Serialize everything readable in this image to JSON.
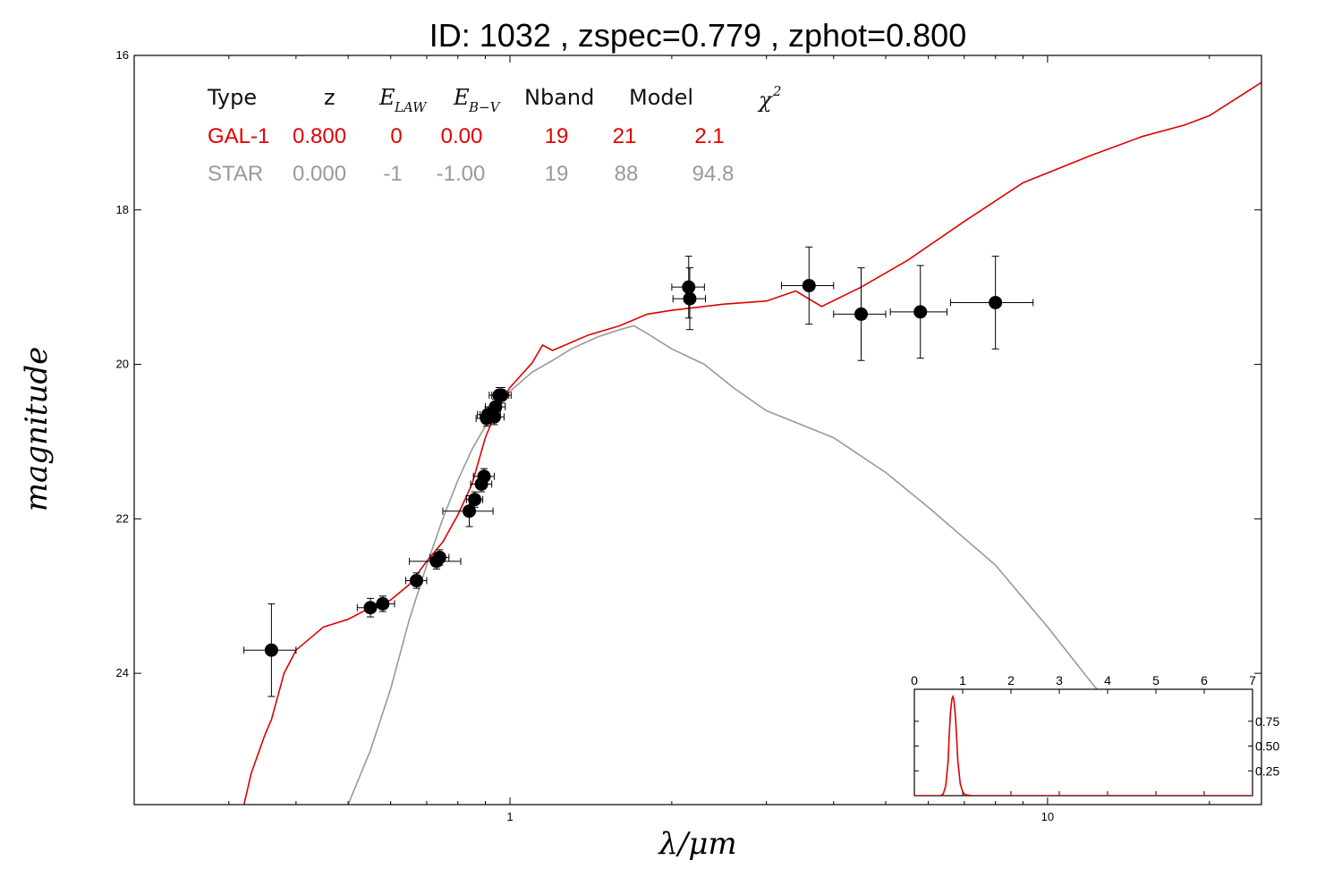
{
  "title": "ID:  1032  , zspec=0.779 , zphot=0.800",
  "colors": {
    "galaxy": "#e00000",
    "star": "#999999",
    "points": "#000000"
  },
  "legend": {
    "headers": [
      "Type",
      "z",
      "E",
      "E",
      "Nband",
      "Model",
      "χ"
    ],
    "header_subscripts": {
      "e_law": "LAW",
      "e_bv": "B−V",
      "chi2": "2"
    },
    "rows": [
      {
        "type": "GAL-1",
        "z": "0.800",
        "e_law": "0",
        "e_bv": "0.00",
        "nband": "19",
        "model": "21",
        "chi2": "2.1",
        "color": "#e00000"
      },
      {
        "type": "STAR",
        "z": "0.000",
        "e_law": "-1",
        "e_bv": "-1.00",
        "nband": "19",
        "model": "88",
        "chi2": "94.8",
        "color": "#999999"
      }
    ]
  },
  "chart_data": [
    {
      "type": "scatter",
      "x_scale": "log",
      "y_inverted": true,
      "xlabel": "λ/μm",
      "ylabel": "magnitude",
      "xlim": [
        0.2,
        25
      ],
      "ylim": [
        25.7,
        16
      ],
      "x_ticks": [
        1,
        10
      ],
      "y_ticks": [
        16,
        18,
        20,
        22,
        24
      ],
      "grid": false,
      "photometry": [
        {
          "x": 0.36,
          "y": 23.7,
          "xerr": 0.04,
          "yerr": 0.6
        },
        {
          "x": 0.55,
          "y": 23.15,
          "xerr": 0.03,
          "yerr": 0.12
        },
        {
          "x": 0.58,
          "y": 23.1,
          "xerr": 0.03,
          "yerr": 0.1
        },
        {
          "x": 0.67,
          "y": 22.8,
          "xerr": 0.03,
          "yerr": 0.1
        },
        {
          "x": 0.73,
          "y": 22.55,
          "xerr": 0.08,
          "yerr": 0.1
        },
        {
          "x": 0.74,
          "y": 22.5,
          "xerr": 0.03,
          "yerr": 0.1
        },
        {
          "x": 0.84,
          "y": 21.9,
          "xerr": 0.09,
          "yerr": 0.2
        },
        {
          "x": 0.86,
          "y": 21.75,
          "xerr": 0.03,
          "yerr": 0.1
        },
        {
          "x": 0.885,
          "y": 21.55,
          "xerr": 0.04,
          "yerr": 0.1
        },
        {
          "x": 0.895,
          "y": 21.45,
          "xerr": 0.04,
          "yerr": 0.1
        },
        {
          "x": 0.905,
          "y": 20.7,
          "xerr": 0.04,
          "yerr": 0.1
        },
        {
          "x": 0.91,
          "y": 20.65,
          "xerr": 0.04,
          "yerr": 0.1
        },
        {
          "x": 0.92,
          "y": 20.65,
          "xerr": 0.04,
          "yerr": 0.1
        },
        {
          "x": 0.935,
          "y": 20.68,
          "xerr": 0.04,
          "yerr": 0.1
        },
        {
          "x": 0.94,
          "y": 20.55,
          "xerr": 0.04,
          "yerr": 0.1
        },
        {
          "x": 0.955,
          "y": 20.4,
          "xerr": 0.04,
          "yerr": 0.1
        },
        {
          "x": 0.965,
          "y": 20.4,
          "xerr": 0.04,
          "yerr": 0.1
        },
        {
          "x": 2.15,
          "y": 19.0,
          "xerr": 0.15,
          "yerr": 0.4
        },
        {
          "x": 2.16,
          "y": 19.15,
          "xerr": 0.15,
          "yerr": 0.4
        },
        {
          "x": 3.6,
          "y": 18.98,
          "xerr": 0.4,
          "yerr": 0.5
        },
        {
          "x": 4.5,
          "y": 19.35,
          "xerr": 0.5,
          "yerr": 0.6
        },
        {
          "x": 5.8,
          "y": 19.32,
          "xerr": 0.7,
          "yerr": 0.6
        },
        {
          "x": 8.0,
          "y": 19.2,
          "xerr": 1.4,
          "yerr": 0.6
        }
      ],
      "series": [
        {
          "name": "GAL-1",
          "x": [
            0.32,
            0.33,
            0.35,
            0.36,
            0.38,
            0.4,
            0.45,
            0.5,
            0.55,
            0.6,
            0.65,
            0.7,
            0.75,
            0.8,
            0.85,
            0.9,
            0.95,
            1.0,
            1.1,
            1.15,
            1.2,
            1.4,
            1.6,
            1.8,
            2.0,
            2.5,
            3.0,
            3.4,
            3.8,
            4.5,
            5.5,
            7,
            9,
            12,
            15,
            18,
            20,
            25
          ],
          "y": [
            25.7,
            25.3,
            24.8,
            24.6,
            24.0,
            23.7,
            23.4,
            23.3,
            23.15,
            23.05,
            22.85,
            22.55,
            22.3,
            21.95,
            21.55,
            20.95,
            20.55,
            20.3,
            19.98,
            19.75,
            19.82,
            19.62,
            19.5,
            19.35,
            19.3,
            19.22,
            19.18,
            19.05,
            19.25,
            19.0,
            18.65,
            18.15,
            17.65,
            17.3,
            17.05,
            16.9,
            16.78,
            16.35
          ]
        },
        {
          "name": "STAR",
          "x": [
            0.5,
            0.55,
            0.6,
            0.65,
            0.7,
            0.75,
            0.8,
            0.85,
            0.9,
            0.95,
            1.0,
            1.1,
            1.2,
            1.3,
            1.45,
            1.6,
            1.7,
            1.8,
            2.0,
            2.3,
            2.6,
            3.0,
            4.0,
            5.0,
            6.0,
            8.0,
            10,
            12,
            15
          ],
          "y": [
            25.7,
            25.0,
            24.2,
            23.3,
            22.6,
            22.0,
            21.5,
            21.1,
            20.8,
            20.55,
            20.35,
            20.1,
            19.95,
            19.8,
            19.65,
            19.55,
            19.5,
            19.6,
            19.8,
            20.0,
            20.3,
            20.6,
            20.95,
            21.4,
            21.85,
            22.6,
            23.4,
            24.1,
            24.9
          ]
        }
      ]
    },
    {
      "type": "line",
      "xlim": [
        0,
        7
      ],
      "ylim": [
        0,
        1
      ],
      "x_ticks": [
        0,
        1,
        2,
        3,
        4,
        5,
        6,
        7
      ],
      "y_ticks": [
        0.25,
        0.5,
        0.75
      ],
      "x": [
        0,
        0.55,
        0.6,
        0.65,
        0.7,
        0.72,
        0.75,
        0.78,
        0.8,
        0.82,
        0.85,
        0.88,
        0.9,
        0.95,
        1.0,
        1.05,
        1.2,
        7
      ],
      "y": [
        0,
        0,
        0.02,
        0.1,
        0.35,
        0.6,
        0.85,
        0.98,
        1.0,
        0.96,
        0.8,
        0.55,
        0.35,
        0.12,
        0.04,
        0.01,
        0,
        0
      ]
    }
  ]
}
